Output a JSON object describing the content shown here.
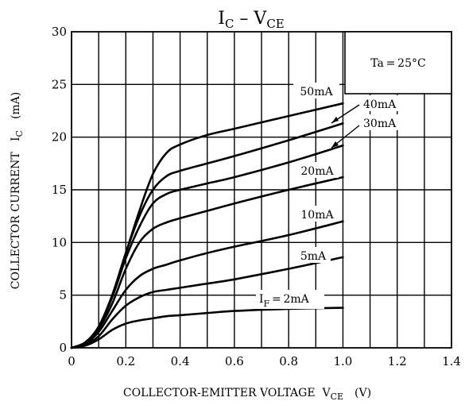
{
  "chart_data": {
    "type": "line",
    "title": {
      "main": "I",
      "sub1": "C",
      "dash": " – ",
      "main2": "V",
      "sub2": "CE"
    },
    "xlabel": {
      "text": "COLLECTOR-EMITTER VOLTAGE  V",
      "sub": "CE",
      "unit": "(V)"
    },
    "ylabel": {
      "text": "COLLECTOR CURRENT   I",
      "sub": "C",
      "unit": "(mA)"
    },
    "xlim": [
      0,
      1.4
    ],
    "ylim": [
      0,
      30
    ],
    "x_ticks": [
      "0",
      "0.2",
      "0.4",
      "0.6",
      "0.8",
      "1.0",
      "1.2",
      "1.4"
    ],
    "y_ticks": [
      "0",
      "5",
      "10",
      "15",
      "20",
      "25",
      "30"
    ],
    "grid": true,
    "condition": "Ta = 25°C",
    "series": [
      {
        "name": "50mA",
        "points": [
          [
            0,
            0
          ],
          [
            0.05,
            0.5
          ],
          [
            0.1,
            2
          ],
          [
            0.15,
            5
          ],
          [
            0.2,
            9
          ],
          [
            0.25,
            13
          ],
          [
            0.3,
            16.5
          ],
          [
            0.35,
            18.5
          ],
          [
            0.4,
            19.3
          ],
          [
            0.5,
            20.2
          ],
          [
            0.6,
            20.8
          ],
          [
            0.8,
            22
          ],
          [
            1.0,
            23.2
          ]
        ]
      },
      {
        "name": "40mA",
        "points": [
          [
            0,
            0
          ],
          [
            0.05,
            0.5
          ],
          [
            0.1,
            2
          ],
          [
            0.15,
            5
          ],
          [
            0.2,
            9
          ],
          [
            0.25,
            12.5
          ],
          [
            0.3,
            15
          ],
          [
            0.35,
            16.3
          ],
          [
            0.4,
            16.8
          ],
          [
            0.5,
            17.5
          ],
          [
            0.6,
            18.2
          ],
          [
            0.8,
            19.7
          ],
          [
            1.0,
            21.3
          ]
        ]
      },
      {
        "name": "30mA",
        "points": [
          [
            0,
            0
          ],
          [
            0.05,
            0.5
          ],
          [
            0.1,
            2
          ],
          [
            0.15,
            4.8
          ],
          [
            0.2,
            8.5
          ],
          [
            0.25,
            11.5
          ],
          [
            0.3,
            13.7
          ],
          [
            0.35,
            14.6
          ],
          [
            0.4,
            15
          ],
          [
            0.5,
            15.6
          ],
          [
            0.6,
            16.2
          ],
          [
            0.8,
            17.6
          ],
          [
            1.0,
            19.2
          ]
        ]
      },
      {
        "name": "20mA",
        "points": [
          [
            0,
            0
          ],
          [
            0.05,
            0.5
          ],
          [
            0.1,
            1.8
          ],
          [
            0.15,
            4.2
          ],
          [
            0.2,
            7.5
          ],
          [
            0.25,
            10
          ],
          [
            0.3,
            11.3
          ],
          [
            0.35,
            11.9
          ],
          [
            0.4,
            12.3
          ],
          [
            0.5,
            13
          ],
          [
            0.6,
            13.7
          ],
          [
            0.8,
            15
          ],
          [
            1.0,
            16.2
          ]
        ]
      },
      {
        "name": "10mA",
        "points": [
          [
            0,
            0
          ],
          [
            0.05,
            0.4
          ],
          [
            0.1,
            1.5
          ],
          [
            0.15,
            3.5
          ],
          [
            0.2,
            5.5
          ],
          [
            0.25,
            6.8
          ],
          [
            0.3,
            7.5
          ],
          [
            0.35,
            7.9
          ],
          [
            0.4,
            8.3
          ],
          [
            0.5,
            9
          ],
          [
            0.6,
            9.6
          ],
          [
            0.8,
            10.7
          ],
          [
            1.0,
            12
          ]
        ]
      },
      {
        "name": "5mA",
        "points": [
          [
            0,
            0
          ],
          [
            0.05,
            0.3
          ],
          [
            0.1,
            1.1
          ],
          [
            0.15,
            2.7
          ],
          [
            0.2,
            4
          ],
          [
            0.25,
            4.8
          ],
          [
            0.3,
            5.3
          ],
          [
            0.35,
            5.5
          ],
          [
            0.4,
            5.7
          ],
          [
            0.5,
            6.1
          ],
          [
            0.6,
            6.5
          ],
          [
            0.8,
            7.5
          ],
          [
            1.0,
            8.6
          ]
        ]
      },
      {
        "name": "2mA",
        "points": [
          [
            0,
            0
          ],
          [
            0.05,
            0.2
          ],
          [
            0.1,
            0.8
          ],
          [
            0.15,
            1.7
          ],
          [
            0.2,
            2.3
          ],
          [
            0.25,
            2.6
          ],
          [
            0.3,
            2.8
          ],
          [
            0.35,
            3
          ],
          [
            0.4,
            3.1
          ],
          [
            0.5,
            3.3
          ],
          [
            0.6,
            3.5
          ],
          [
            0.8,
            3.7
          ],
          [
            1.0,
            3.8
          ]
        ]
      }
    ],
    "series_labels": {
      "s50": "50mA",
      "s40": "40mA",
      "s30": "30mA",
      "s20": "20mA",
      "s10": "10mA",
      "s5": "5mA",
      "s2_main": "I",
      "s2_sub": "F",
      "s2_rest": " = 2mA"
    }
  }
}
